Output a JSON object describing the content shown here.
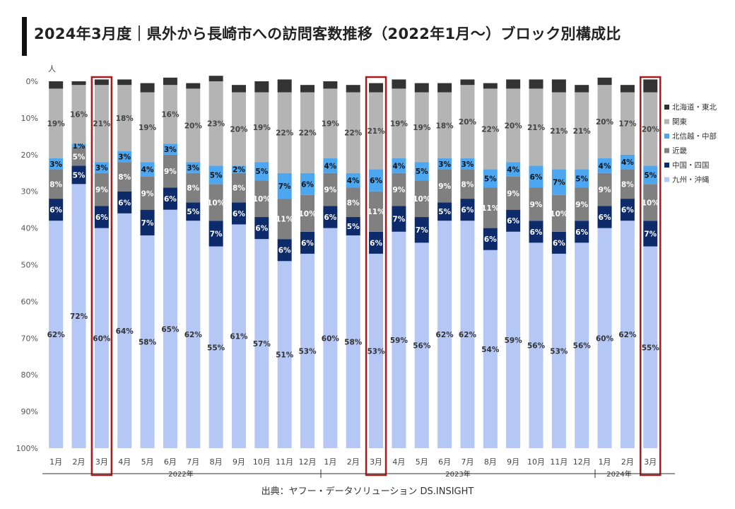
{
  "header": {
    "title": "2024年3月度｜県外から長崎市への訪問客数推移（2022年1月～）ブロック別構成比"
  },
  "source": "出典：ヤフー・データソリューション DS.INSIGHT",
  "colors": {
    "kyushu": "#b4c7f5",
    "chugoku": "#0d2a6b",
    "kinki": "#808080",
    "hokushinetsu": "#4da6f0",
    "kanto": "#b4b4b4",
    "hokkaido": "#333333",
    "highlight": "#a61c1c"
  },
  "chart_data": {
    "type": "bar",
    "stacked": true,
    "unit_label": "人",
    "y_ticks": [
      "0%",
      "10%",
      "20%",
      "30%",
      "40%",
      "50%",
      "60%",
      "70%",
      "80%",
      "90%",
      "100%"
    ],
    "ylim": [
      0,
      100
    ],
    "categories": [
      "1月",
      "2月",
      "3月",
      "4月",
      "5月",
      "6月",
      "7月",
      "8月",
      "9月",
      "10月",
      "11月",
      "12月",
      "1月",
      "2月",
      "3月",
      "4月",
      "5月",
      "6月",
      "7月",
      "8月",
      "9月",
      "10月",
      "11月",
      "12月",
      "1月",
      "2月",
      "3月"
    ],
    "year_labels": [
      "2022年",
      "2023年",
      "2024年"
    ],
    "highlighted_indices": [
      2,
      14,
      26
    ],
    "legend": [
      "北海道・東北",
      "関東",
      "北信越・中部",
      "近畿",
      "中国・四国",
      "九州・沖縄"
    ],
    "series": [
      {
        "name": "九州・沖縄",
        "key": "kyushu",
        "text": "#333333",
        "values": [
          62,
          72,
          60,
          64,
          58,
          65,
          62,
          55,
          61,
          57,
          51,
          53,
          60,
          58,
          53,
          59,
          56,
          62,
          62,
          54,
          59,
          56,
          53,
          56,
          60,
          62,
          55
        ]
      },
      {
        "name": "中国・四国",
        "key": "chugoku",
        "text": "#ffffff",
        "values": [
          6,
          5,
          6,
          6,
          7,
          6,
          5,
          7,
          6,
          6,
          6,
          6,
          6,
          5,
          6,
          7,
          7,
          5,
          6,
          6,
          6,
          6,
          6,
          6,
          6,
          6,
          7
        ]
      },
      {
        "name": "近畿",
        "key": "kinki",
        "text": "#ffffff",
        "values": [
          8,
          5,
          9,
          8,
          9,
          9,
          8,
          10,
          8,
          10,
          11,
          10,
          9,
          8,
          11,
          9,
          10,
          9,
          8,
          11,
          9,
          9,
          10,
          9,
          9,
          8,
          10
        ]
      },
      {
        "name": "北信越・中部",
        "key": "hokushinetsu",
        "text": "#111111",
        "values": [
          3,
          1,
          3,
          3,
          4,
          3,
          3,
          5,
          2,
          5,
          7,
          6,
          4,
          4,
          6,
          4,
          5,
          3,
          3,
          5,
          4,
          6,
          7,
          5,
          4,
          4,
          5
        ]
      },
      {
        "name": "関東",
        "key": "kanto",
        "text": "#444444",
        "values": [
          19,
          16,
          21,
          18,
          19,
          16,
          20,
          23,
          20,
          19,
          22,
          22,
          19,
          22,
          21,
          19,
          19,
          18,
          20,
          22,
          20,
          21,
          21,
          21,
          20,
          17,
          20
        ]
      },
      {
        "name": "北海道・東北",
        "key": "hokkaido",
        "text": "#ffffff",
        "values": [
          2,
          1,
          1.5,
          1.5,
          2.5,
          2,
          1.5,
          1.5,
          2,
          3,
          3.5,
          2,
          2,
          2,
          2.5,
          2.5,
          2.5,
          2.5,
          1.5,
          1.5,
          2.5,
          2.5,
          3.5,
          2,
          2,
          2,
          3.5
        ]
      }
    ]
  }
}
